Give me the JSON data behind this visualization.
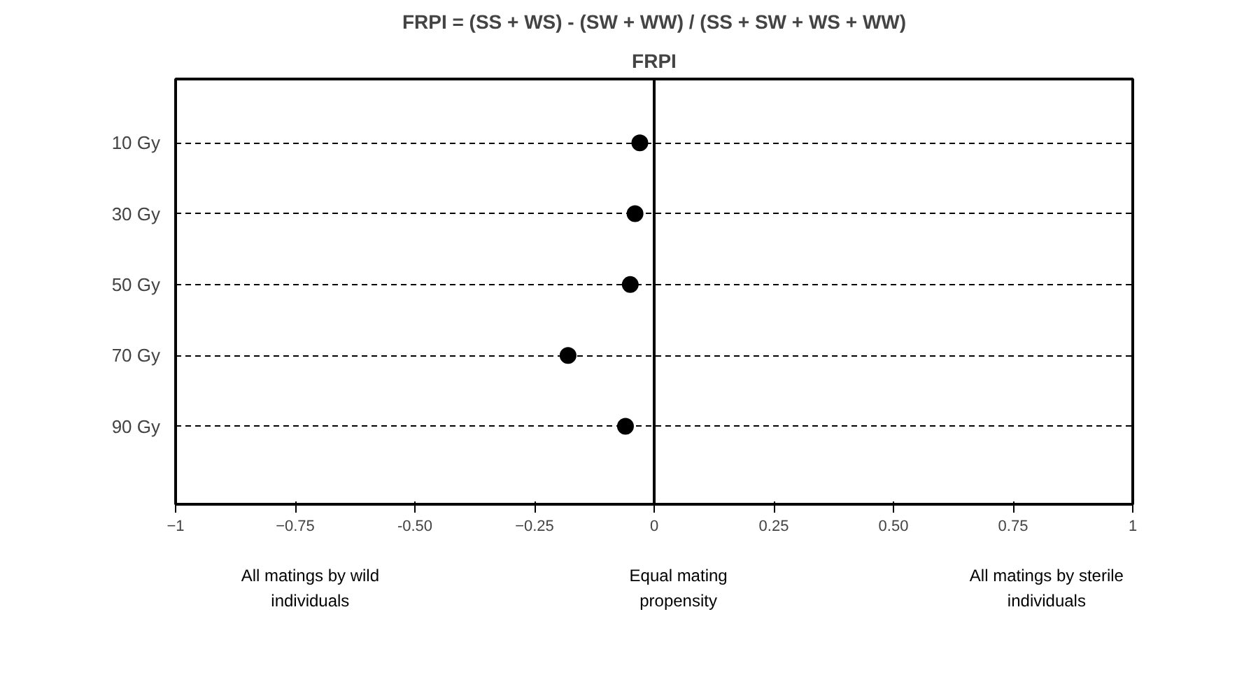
{
  "chart_data": {
    "type": "scatter",
    "title": "FRPI = (SS + WS) - (SW + WW) / (SS + SW + WS + WW)",
    "subtitle": "FRPI",
    "orientation": "horizontal",
    "categories": [
      "10 Gy",
      "30 Gy",
      "50 Gy",
      "70 Gy",
      "90 Gy"
    ],
    "series": [
      {
        "color": "#000000",
        "values": [
          -0.03,
          -0.04,
          -0.05,
          -0.18,
          -0.06
        ]
      }
    ],
    "marker": "circle",
    "xlim": [
      -1,
      1
    ],
    "xticks": [
      -1,
      -0.75,
      {
        "value": -0.5,
        "label": "-0.50"
      },
      -0.25,
      0,
      0.25,
      {
        "value": 0.5,
        "label": "0.50"
      },
      0.75,
      1
    ],
    "grid": "y",
    "ref_lines": [
      {
        "axis": "x",
        "value": 0,
        "color": "#000000",
        "line_style": "solid"
      }
    ],
    "annotations": [
      "All matings by wild\nindividuals",
      "Equal mating\npropensity",
      "All matings by sterile\nindividuals"
    ]
  }
}
